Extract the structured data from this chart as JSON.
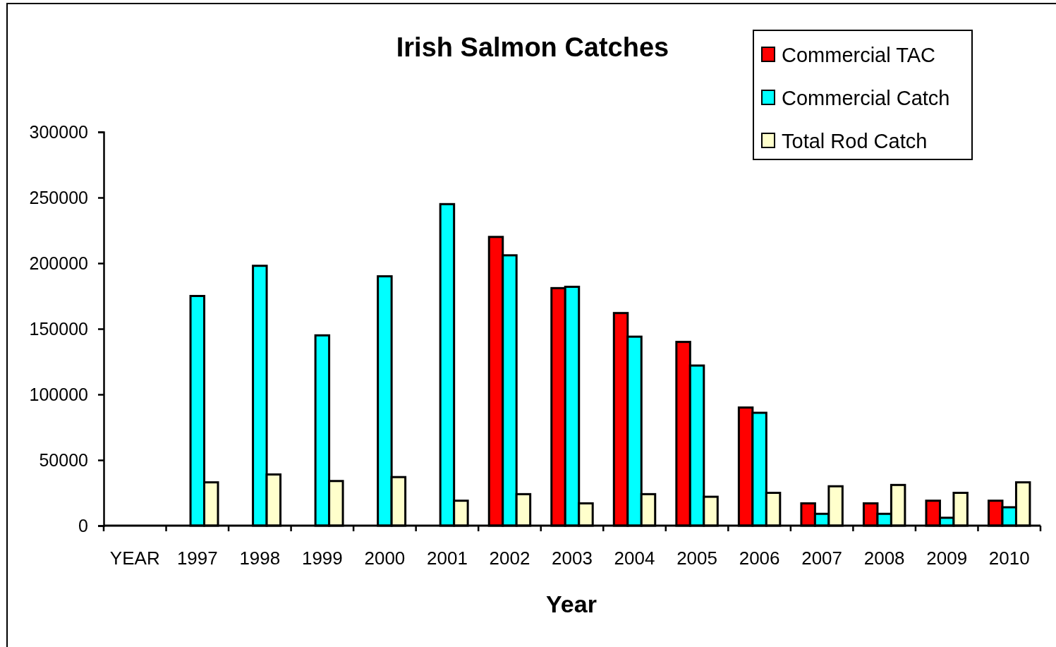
{
  "chart_data": {
    "type": "bar",
    "title": "Irish Salmon Catches",
    "xlabel": "Year",
    "categories": [
      "YEAR",
      "1997",
      "1998",
      "1999",
      "2000",
      "2001",
      "2002",
      "2003",
      "2004",
      "2005",
      "2006",
      "2007",
      "2008",
      "2009",
      "2010"
    ],
    "series": [
      {
        "name": "Commercial TAC",
        "color": "#ff0000",
        "values": [
          null,
          null,
          null,
          null,
          null,
          null,
          220000,
          181000,
          162000,
          140000,
          90000,
          17000,
          17000,
          19000,
          19000
        ]
      },
      {
        "name": "Commercial Catch",
        "color": "#00ffff",
        "values": [
          null,
          175000,
          198000,
          145000,
          190000,
          245000,
          206000,
          182000,
          144000,
          122000,
          86000,
          9000,
          9000,
          6000,
          14000
        ]
      },
      {
        "name": "Total Rod Catch",
        "color": "#ffffcc",
        "values": [
          null,
          33000,
          39000,
          34000,
          37000,
          19000,
          24000,
          17000,
          24000,
          22000,
          25000,
          30000,
          31000,
          25000,
          33000
        ]
      }
    ],
    "ylim": [
      0,
      300000
    ],
    "yticks": [
      0,
      50000,
      100000,
      150000,
      200000,
      250000,
      300000
    ],
    "legend": "top right"
  }
}
